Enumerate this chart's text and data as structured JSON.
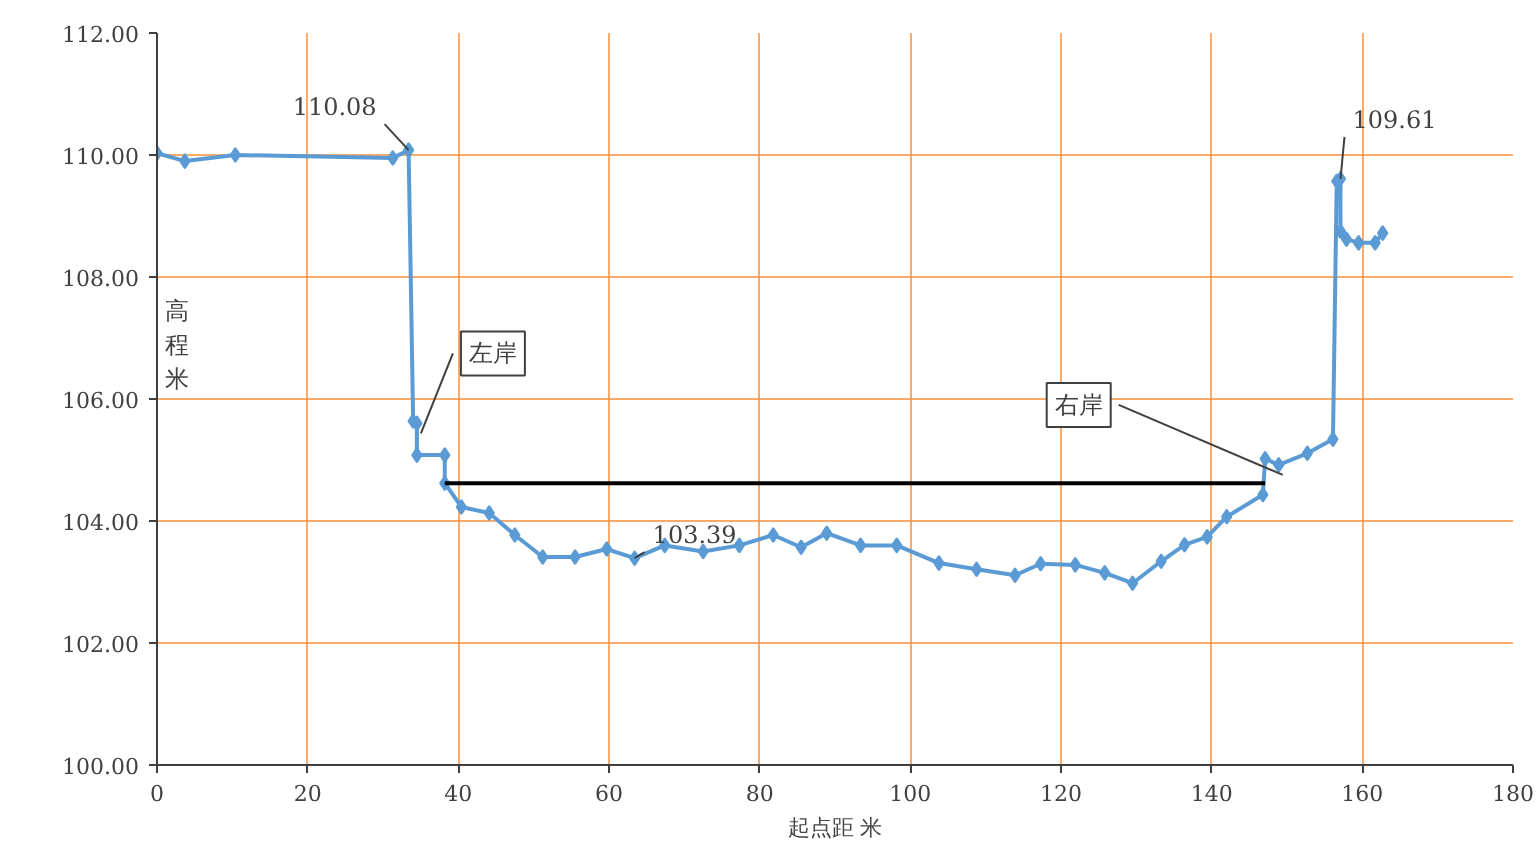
{
  "chart_data": {
    "type": "line",
    "xlabel": "起点距 米",
    "ylabel": "高程米",
    "xlim": [
      0,
      180
    ],
    "xticks": [
      0,
      20,
      40,
      60,
      80,
      100,
      120,
      140,
      160,
      180
    ],
    "ylim": [
      100,
      112
    ],
    "yticks": [
      {
        "value": 100,
        "label": "100.00"
      },
      {
        "value": 102,
        "label": "102.00"
      },
      {
        "value": 104,
        "label": "104.00"
      },
      {
        "value": 106,
        "label": "106.00"
      },
      {
        "value": 108,
        "label": "108.00"
      },
      {
        "value": 110,
        "label": "110.00"
      },
      {
        "value": 112,
        "label": "112.00"
      }
    ],
    "grid": true,
    "marker": "diamond",
    "line_style": "solid",
    "series": [
      {
        "color": "#5b9bd5",
        "x": [
          0,
          3.7,
          10.4,
          31.3,
          33.4,
          34.0,
          34.5,
          34.5,
          38.2,
          38.2,
          40.4,
          44.1,
          47.5,
          51.2,
          55.5,
          59.7,
          63.4,
          67.4,
          72.5,
          77.3,
          81.8,
          85.5,
          88.9,
          93.4,
          98.2,
          103.8,
          108.8,
          113.9,
          117.3,
          121.9,
          125.8,
          129.5,
          133.3,
          136.4,
          139.4,
          142.0,
          146.8,
          147.1,
          148.9,
          152.7,
          156.1,
          156.6,
          157.1,
          157.1,
          157.9,
          159.5,
          161.7,
          162.7
        ],
        "values": [
          110.03,
          109.9,
          110.0,
          109.95,
          110.08,
          105.64,
          105.6,
          105.08,
          105.08,
          104.62,
          104.23,
          104.13,
          103.77,
          103.41,
          103.41,
          103.54,
          103.39,
          103.6,
          103.5,
          103.6,
          103.77,
          103.57,
          103.8,
          103.6,
          103.6,
          103.31,
          103.21,
          103.11,
          103.3,
          103.28,
          103.15,
          102.98,
          103.34,
          103.61,
          103.74,
          104.07,
          104.43,
          105.02,
          104.92,
          105.11,
          105.34,
          109.57,
          109.61,
          108.75,
          108.62,
          108.56,
          108.56,
          108.72
        ]
      },
      {
        "color": "#000000",
        "marker": "none",
        "x": [
          38.2,
          147.1
        ],
        "values": [
          104.62,
          104.62
        ]
      }
    ],
    "annotations": [
      {
        "text": "110.08",
        "x": 33.4,
        "y": 110.08
      },
      {
        "text": "103.39",
        "x": 63.4,
        "y": 103.39
      },
      {
        "text": "109.61",
        "x": 157.1,
        "y": 109.61
      },
      {
        "text": "左岸",
        "x": 34.5,
        "y": 105.6
      },
      {
        "text": "右岸",
        "x": 148.9,
        "y": 104.92
      }
    ]
  }
}
